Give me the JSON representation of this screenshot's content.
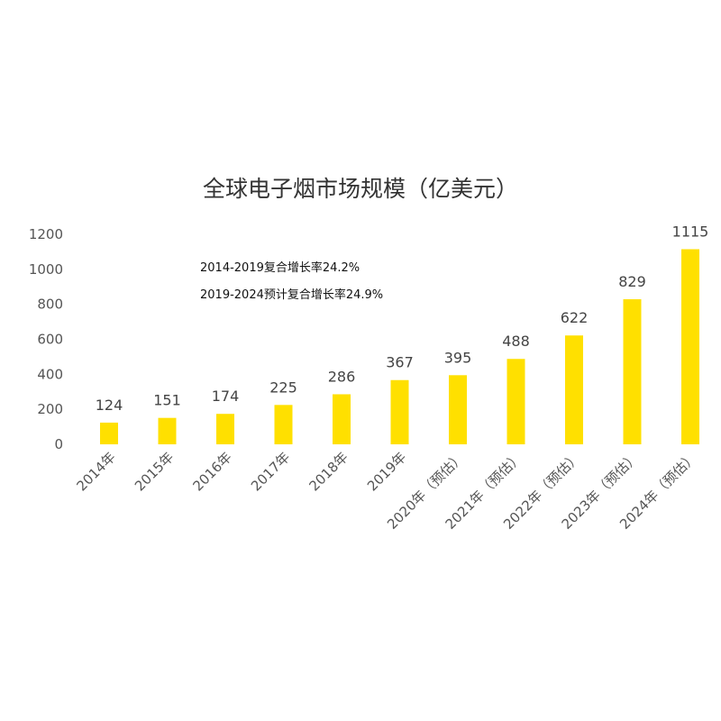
{
  "chart_data": {
    "type": "bar",
    "title": "全球电子烟市场规模（亿美元）",
    "categories": [
      "2014年",
      "2015年",
      "2016年",
      "2017年",
      "2018年",
      "2019年",
      "2020年（预估）",
      "2021年（预估）",
      "2022年（预估）",
      "2023年（预估）",
      "2024年（预估）"
    ],
    "values": [
      124,
      151,
      174,
      225,
      286,
      367,
      395,
      488,
      622,
      829,
      1115
    ],
    "data_labels": [
      "124",
      "151",
      "174",
      "225",
      "286",
      "367",
      "395",
      "488",
      "622",
      "829",
      "1115"
    ],
    "y_ticks": [
      "0",
      "200",
      "400",
      "600",
      "800",
      "1000",
      "1200"
    ],
    "ylim": [
      0,
      1200
    ],
    "xlabel": "",
    "ylabel": "",
    "grid": false,
    "bar_color": "#FFE000",
    "annotations": [
      "2014-2019复合增长率24.2%",
      "2019-2024预计复合增长率24.9%"
    ]
  }
}
